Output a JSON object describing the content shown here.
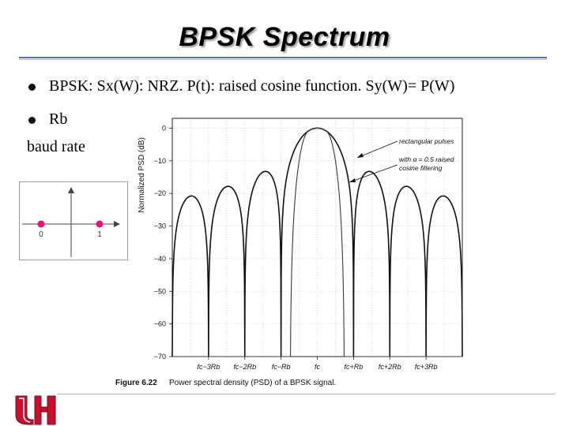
{
  "slide": {
    "title": "BPSK Spectrum",
    "bullets": [
      "BPSK: Sx(W): NRZ. P(t): raised cosine function. Sy(W)= P(W)",
      "Rb"
    ],
    "plain_text": "baud rate"
  },
  "constellation": {
    "points": [
      0,
      1
    ],
    "labels": [
      "0",
      "1"
    ],
    "point_color": "#e8127c"
  },
  "logo": {
    "text": "UH",
    "color": "#c8102e"
  },
  "chart_data": {
    "type": "line",
    "title": "",
    "ylabel": "Normalized PSD (dB)",
    "xlabel": "",
    "ylim": [
      -70,
      3
    ],
    "xlim": [
      -4,
      4
    ],
    "y_ticks": [
      0,
      -10,
      -20,
      -30,
      -40,
      -50,
      -60,
      -70
    ],
    "y_tick_labels": [
      "0",
      "−10",
      "−20",
      "−30",
      "−40",
      "−50",
      "−60",
      "−70"
    ],
    "x_ticks": [
      -3,
      -2,
      -1,
      0,
      1,
      2,
      3
    ],
    "x_tick_labels": [
      "fc−3Rb",
      "fc−2Rb",
      "fc−Rb",
      "fc",
      "fc+Rb",
      "fc+2Rb",
      "fc+3Rb"
    ],
    "series": [
      {
        "name": "rectangular pulses",
        "function": "sinc^2",
        "style": "solid"
      },
      {
        "name": "with α = 0.5 raised cosine filtering",
        "function": "raised-cosine",
        "rolloff": 0.5,
        "style": "solid"
      }
    ],
    "annotations": [
      {
        "text": "rectangular pulses"
      },
      {
        "text_lines": [
          "with α = 0.5 raised",
          "cosine filtering"
        ]
      }
    ],
    "caption_label": "Figure 6.22",
    "caption_text": "Power spectral density (PSD) of a BPSK signal."
  }
}
